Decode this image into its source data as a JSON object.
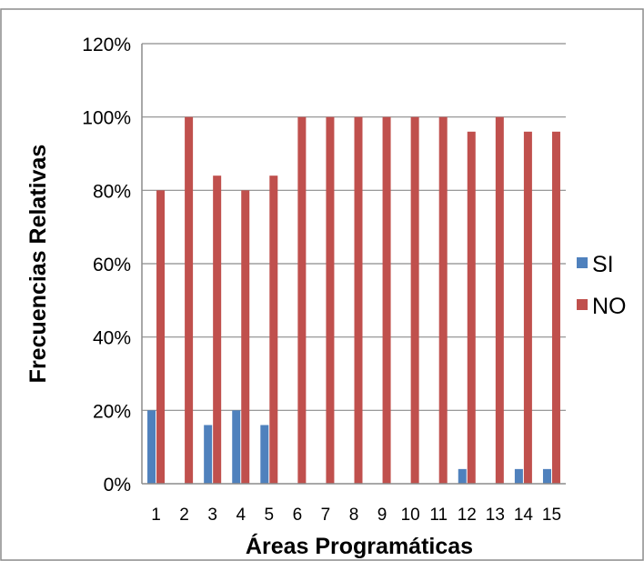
{
  "chart_data": {
    "type": "bar",
    "title": "",
    "xlabel": "Áreas Programáticas",
    "ylabel": "Frecuencias Relativas",
    "categories": [
      "1",
      "2",
      "3",
      "4",
      "5",
      "6",
      "7",
      "8",
      "9",
      "10",
      "11",
      "12",
      "13",
      "14",
      "15"
    ],
    "series": [
      {
        "name": "SI",
        "color": "#4f81bd",
        "values": [
          20,
          0,
          16,
          20,
          16,
          0,
          0,
          0,
          0,
          0,
          0,
          4,
          0,
          4,
          4
        ]
      },
      {
        "name": "NO",
        "color": "#c0504d",
        "values": [
          80,
          100,
          84,
          80,
          84,
          100,
          100,
          100,
          100,
          100,
          100,
          96,
          100,
          96,
          96
        ]
      }
    ],
    "ylim": [
      0,
      120
    ],
    "yticks": [
      "0%",
      "20%",
      "40%",
      "60%",
      "80%",
      "100%",
      "120%"
    ],
    "grid": true,
    "legend_position": "right"
  }
}
